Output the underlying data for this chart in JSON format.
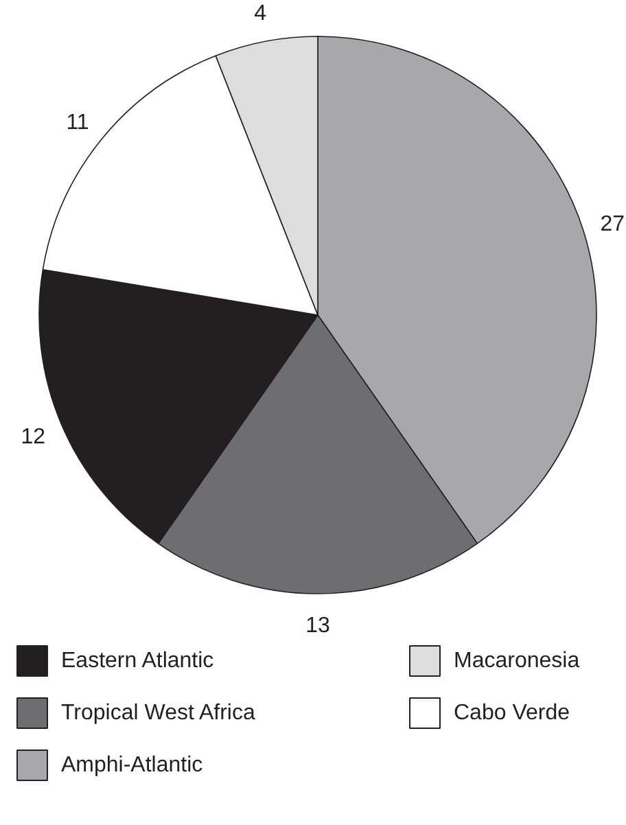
{
  "chart_data": {
    "type": "pie",
    "categories": [
      "Amphi-Atlantic",
      "Tropical West Africa",
      "Eastern Atlantic",
      "Cabo Verde",
      "Macaronesia"
    ],
    "values": [
      27,
      13,
      12,
      11,
      4
    ],
    "colors": [
      "#a6a8ab",
      "#6d6e71",
      "#231f20",
      "#ffffff",
      "#dcdddf"
    ],
    "data_labels": true,
    "legend": "bottom"
  }
}
